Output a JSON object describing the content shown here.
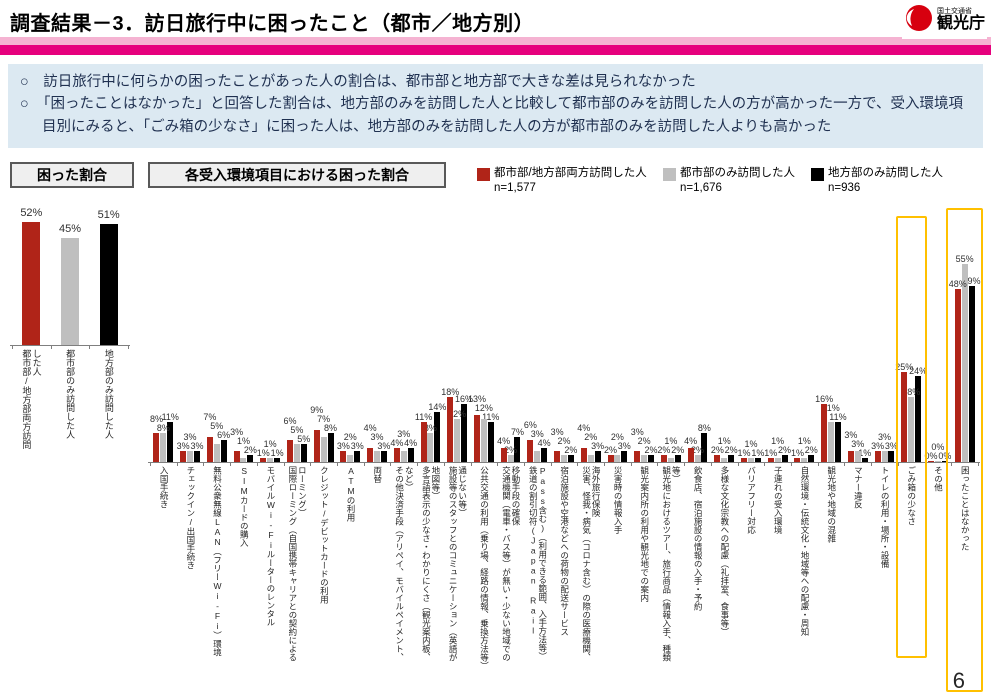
{
  "header": {
    "title": "調査結果－3．訪日旅行中に困ったこと（都市／地方別）",
    "logo_small": "国土交通省",
    "logo_large": "観光庁"
  },
  "bullet_marker": "○",
  "bullets": [
    "訪日旅行中に何らかの困ったことがあった人の割合は、都市部と地方部で大きな差は見られなかった",
    "「困ったことはなかった」と回答した割合は、地方部のみを訪問した人と比較して都市部のみを訪問した人の方が高かった一方で、受入環境項目別にみると、「ごみ箱の少なさ」に困った人は、地方部のみを訪問した人の方が都市部のみを訪問した人よりも高かった"
  ],
  "section_labels": {
    "left": "困った割合",
    "right": "各受入環境項目における困った割合"
  },
  "legend": [
    {
      "label": "都市部/地方部両方訪問した人",
      "n": "n=1,577",
      "color": "#b02418"
    },
    {
      "label": "都市部のみ訪問した人",
      "n": "n=1,676",
      "color": "#bfbfbf"
    },
    {
      "label": "地方部のみ訪問した人",
      "n": "n=936",
      "color": "#000000"
    }
  ],
  "colors": {
    "red": "#b02418",
    "gray": "#bfbfbf",
    "black": "#000000",
    "highlight": "#ffc000",
    "accent_pink": "#e6007d",
    "bullet_box_bg": "#dce9f2"
  },
  "page": {
    "number": "6"
  },
  "chart_data": [
    {
      "type": "bar",
      "title": "困った割合",
      "unit": "%",
      "categories": [
        "都市部/地方部両方訪問した人",
        "都市部のみ訪問した人",
        "地方部のみ訪問した人"
      ],
      "values": [
        52,
        45,
        51
      ],
      "bar_colors": [
        "#b02418",
        "#bfbfbf",
        "#000000"
      ],
      "ylim": [
        0,
        60
      ],
      "grid": false
    },
    {
      "type": "bar",
      "title": "各受入環境項目における困った割合",
      "unit": "%",
      "ylim": [
        0,
        55
      ],
      "grid": false,
      "legend_position": "top-right",
      "categories": [
        "入国手続き",
        "チェックイン/出国手続き",
        "無料公衆無線LAN（フリーWi-Fi）環境",
        "SIMカードの購入",
        "モバイルWi-Fiルーターのレンタル",
        "国際ローミング（自国携帯キャリアとの契約によるローミング）",
        "クレジット/デビットカードの利用",
        "ATMの利用",
        "両替",
        "その他決済手段（アリペイ、モバイルペイメント、など）",
        "多言語表示の少なさ・わかりにくさ（観光案内板、地図等）",
        "施設等のスタッフとのコミュニケーション（英語が通じない等）",
        "公共交通の利用（乗り場、経路の情報、乗換方法等）",
        "交通機関（電車・バス等）が無い・少ない地域での移動手段の確保",
        "鉄道の割引切符(Japan Rail Pass含む)（利用できる範囲、入手方法等）",
        "宿泊施設や空港などへの荷物の配送サービス",
        "災害、怪我・病気（コロナ含む）の際の医療機関、海外旅行保険",
        "災害時の情報入手",
        "観光案内所の利用や観光地での案内",
        "観光地におけるツアー、旅行商品（情報入手、種類等）",
        "飲食店、宿泊施設の情報の入手・予約",
        "多様な文化宗教への配慮（礼拝室、食事等）",
        "バリアフリー対応",
        "子連れの受入環境",
        "自然環境・伝統文化・地域等への配慮・周知",
        "観光地や地域の混雑",
        "マナー違反",
        "トイレの利用・場所・設備",
        "ごみ箱の少なさ",
        "その他",
        "困ったことはなかった"
      ],
      "series": [
        {
          "name": "都市部/地方部両方訪問した人",
          "n": "n=1,577",
          "color": "#b02418",
          "values": [
            8,
            3,
            7,
            3,
            1,
            6,
            9,
            3,
            4,
            4,
            11,
            18,
            13,
            4,
            6,
            3,
            4,
            2,
            3,
            2,
            4,
            2,
            1,
            1,
            1,
            16,
            3,
            3,
            25,
            0,
            48
          ]
        },
        {
          "name": "都市部のみ訪問した人",
          "n": "n=1,676",
          "color": "#bfbfbf",
          "values": [
            8,
            3,
            5,
            1,
            1,
            5,
            7,
            2,
            3,
            3,
            8,
            12,
            12,
            2,
            3,
            2,
            2,
            2,
            2,
            1,
            2,
            1,
            1,
            1,
            1,
            11,
            3,
            3,
            18,
            0,
            55
          ]
        },
        {
          "name": "地方部のみ訪問した人",
          "n": "n=936",
          "color": "#000000",
          "values": [
            11,
            3,
            6,
            2,
            1,
            5,
            8,
            3,
            3,
            4,
            14,
            16,
            11,
            7,
            4,
            2,
            3,
            3,
            2,
            2,
            8,
            2,
            1,
            2,
            2,
            11,
            1,
            3,
            24,
            0,
            49
          ]
        }
      ],
      "highlighted_categories": [
        "ごみ箱の少なさ",
        "困ったことはなかった"
      ]
    }
  ]
}
